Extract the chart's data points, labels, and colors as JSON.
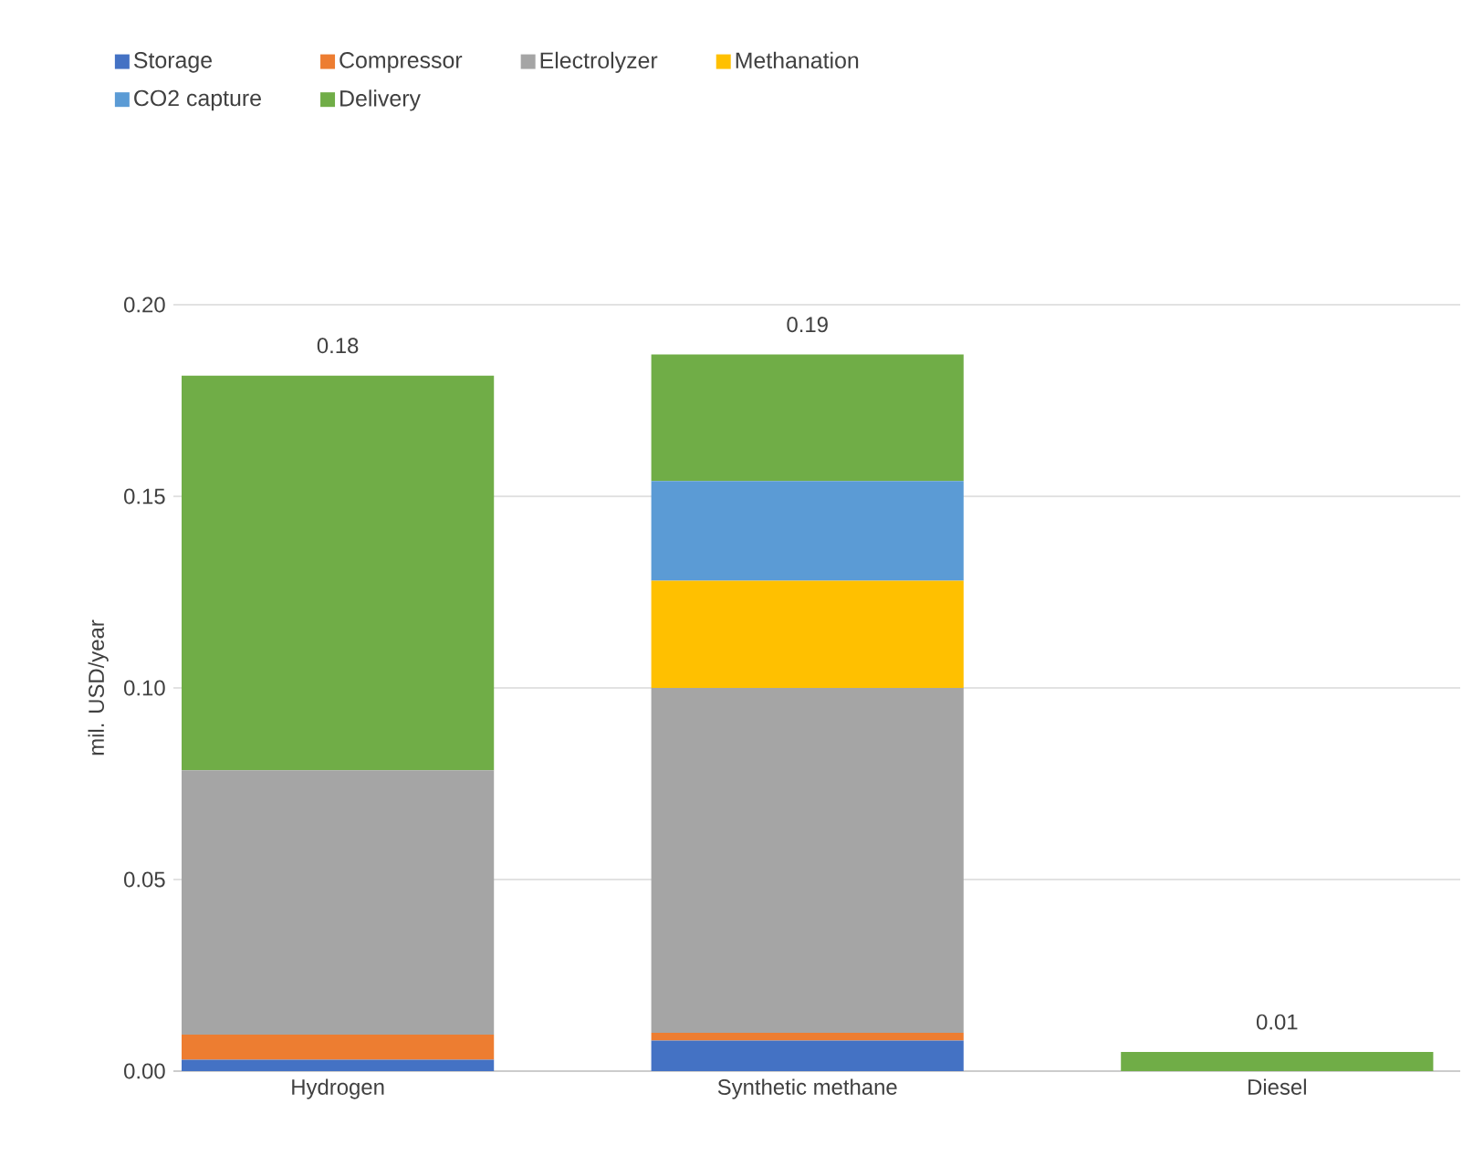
{
  "chart_data": {
    "type": "bar",
    "stacked": true,
    "ylabel": "mil. USD/year",
    "categories": [
      "Hydrogen",
      "Synthetic methane",
      "Diesel"
    ],
    "series": [
      {
        "name": "Storage",
        "color": "#4472c4",
        "values": [
          0.003,
          0.008,
          0
        ]
      },
      {
        "name": "Compressor",
        "color": "#ed7d31",
        "values": [
          0.0065,
          0.002,
          0
        ]
      },
      {
        "name": "Electrolyzer",
        "color": "#a5a5a5",
        "values": [
          0.069,
          0.09,
          0
        ]
      },
      {
        "name": "Methanation",
        "color": "#ffc000",
        "values": [
          0,
          0.028,
          0
        ]
      },
      {
        "name": "CO2 capture",
        "color": "#5b9bd5",
        "values": [
          0,
          0.026,
          0
        ]
      },
      {
        "name": "Delivery",
        "color": "#70ad47",
        "values": [
          0.103,
          0.033,
          0.005
        ]
      }
    ],
    "totals": [
      "0.18",
      "0.19",
      "0.01"
    ],
    "ylim": [
      0,
      0.2
    ],
    "yticks": [
      {
        "value": 0,
        "label": "0.00"
      },
      {
        "value": 0.05,
        "label": "0.05"
      },
      {
        "value": 0.1,
        "label": "0.10"
      },
      {
        "value": 0.15,
        "label": "0.15"
      },
      {
        "value": 0.2,
        "label": "0.20"
      }
    ],
    "grid": "y",
    "legend": "top"
  }
}
